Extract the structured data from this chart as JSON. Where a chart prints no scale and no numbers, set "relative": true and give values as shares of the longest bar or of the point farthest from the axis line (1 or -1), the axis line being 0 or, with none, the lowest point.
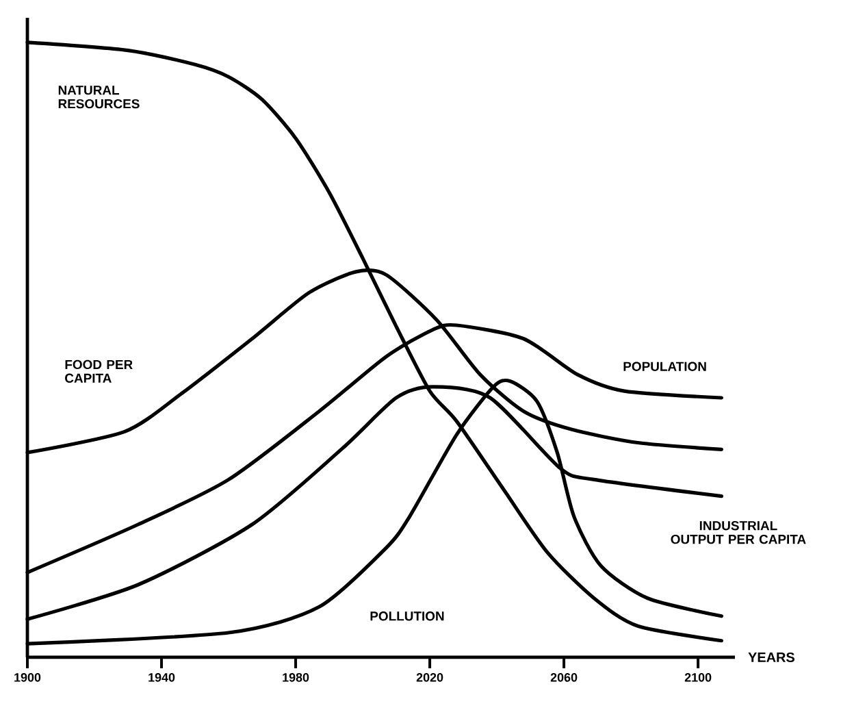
{
  "chart_data": {
    "type": "line",
    "relative": true,
    "xlabel": "YEARS",
    "xlim": [
      1900,
      2111
    ],
    "xticks": [
      1900,
      1940,
      1980,
      2020,
      2060,
      2100
    ],
    "series": [
      {
        "name": "NATURAL RESOURCES",
        "color": "#000000",
        "x": [
          1900,
          1930,
          1950,
          1960,
          1970,
          1980,
          1990,
          2000,
          2010,
          2020,
          2028,
          2042,
          2055,
          2069,
          2082,
          2107
        ],
        "values": [
          1.0,
          0.987,
          0.964,
          0.944,
          0.907,
          0.844,
          0.756,
          0.649,
          0.538,
          0.433,
          0.384,
          0.273,
          0.171,
          0.096,
          0.051,
          0.027
        ]
      },
      {
        "name": "FOOD PER CAPITA",
        "color": "#000000",
        "x": [
          1900,
          1929,
          1946,
          1967,
          1984,
          1998,
          2007,
          2022,
          2035,
          2048,
          2062,
          2082,
          2107
        ],
        "values": [
          0.333,
          0.367,
          0.429,
          0.518,
          0.593,
          0.627,
          0.622,
          0.549,
          0.46,
          0.4,
          0.371,
          0.349,
          0.338
        ]
      },
      {
        "name": "POPULATION",
        "color": "#000000",
        "x": [
          1900,
          1933,
          1960,
          1987,
          2007,
          2021,
          2028,
          2048,
          2064,
          2078,
          2107
        ],
        "values": [
          0.138,
          0.216,
          0.289,
          0.4,
          0.489,
          0.533,
          0.54,
          0.518,
          0.46,
          0.433,
          0.422
        ]
      },
      {
        "name": "INDUSTRIAL OUTPUT PER CAPITA",
        "color": "#000000",
        "x": [
          1900,
          1933,
          1967,
          1994,
          2010,
          2021,
          2038,
          2059,
          2069,
          2107
        ],
        "values": [
          0.062,
          0.118,
          0.216,
          0.34,
          0.422,
          0.44,
          0.422,
          0.307,
          0.289,
          0.262
        ]
      },
      {
        "name": "POLLUTION",
        "color": "#000000",
        "x": [
          1900,
          1960,
          1987,
          2007,
          2014,
          2028,
          2039,
          2044,
          2052,
          2058,
          2063,
          2071,
          2085,
          2107
        ],
        "values": [
          0.022,
          0.04,
          0.082,
          0.178,
          0.229,
          0.362,
          0.44,
          0.449,
          0.416,
          0.333,
          0.229,
          0.149,
          0.096,
          0.067
        ]
      }
    ]
  }
}
